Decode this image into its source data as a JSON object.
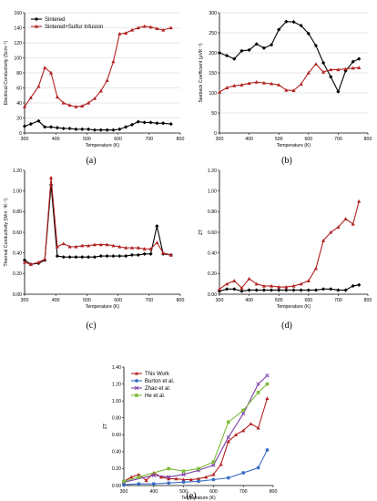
{
  "chart_data": [
    {
      "id": "a",
      "caption": "(a)",
      "type": "line",
      "xlabel": "Temperature (K)",
      "ylabel": "Electrical Conductivity (Scm⁻¹)",
      "xlim": [
        300,
        800
      ],
      "ylim": [
        0,
        160
      ],
      "xticks": [
        300,
        400,
        500,
        600,
        700,
        800
      ],
      "yticks": [
        0,
        20,
        40,
        60,
        80,
        100,
        120,
        140,
        160
      ],
      "grid": true,
      "legend": "top-left",
      "series": [
        {
          "name": "Sintered",
          "color": "#000000",
          "marker": "diamond",
          "x": [
            300,
            320,
            345,
            365,
            385,
            405,
            425,
            445,
            465,
            485,
            505,
            525,
            545,
            565,
            585,
            605,
            625,
            645,
            665,
            685,
            705,
            725,
            745,
            770
          ],
          "y": [
            9,
            12,
            16,
            8,
            8,
            7,
            6,
            6,
            5,
            5,
            5,
            4,
            4,
            4,
            4,
            5,
            8,
            11,
            15,
            14,
            14,
            13,
            13,
            12
          ]
        },
        {
          "name": "Sintered+Sulfur Infusion",
          "color": "#b22222",
          "marker": "triangle",
          "x": [
            300,
            320,
            345,
            365,
            385,
            405,
            425,
            445,
            465,
            485,
            505,
            525,
            545,
            565,
            585,
            605,
            625,
            645,
            665,
            685,
            705,
            725,
            745,
            770
          ],
          "y": [
            35,
            47,
            62,
            87,
            80,
            48,
            40,
            37,
            35,
            36,
            40,
            46,
            56,
            70,
            95,
            132,
            133,
            137,
            140,
            142,
            141,
            139,
            137,
            140
          ]
        }
      ]
    },
    {
      "id": "b",
      "caption": "(b)",
      "type": "line",
      "xlabel": "Temperature (K)",
      "ylabel": "Seebeck Coefficient (μVK⁻¹)",
      "xlim": [
        300,
        800
      ],
      "ylim": [
        0,
        300
      ],
      "xticks": [
        300,
        400,
        500,
        600,
        700,
        800
      ],
      "yticks": [
        0,
        50,
        100,
        150,
        200,
        250,
        300
      ],
      "grid": true,
      "series": [
        {
          "name": "",
          "color": "#000000",
          "marker": "diamond",
          "x": [
            300,
            325,
            350,
            375,
            400,
            425,
            450,
            475,
            500,
            525,
            550,
            575,
            600,
            625,
            650,
            675,
            700,
            725,
            750,
            770
          ],
          "y": [
            200,
            193,
            185,
            205,
            207,
            222,
            212,
            220,
            258,
            278,
            277,
            268,
            248,
            218,
            175,
            140,
            103,
            155,
            178,
            185
          ]
        },
        {
          "name": "",
          "color": "#b22222",
          "marker": "triangle",
          "x": [
            300,
            325,
            350,
            375,
            400,
            425,
            450,
            475,
            500,
            525,
            550,
            575,
            600,
            625,
            650,
            675,
            700,
            725,
            750,
            770
          ],
          "y": [
            102,
            113,
            118,
            120,
            124,
            127,
            125,
            123,
            120,
            107,
            106,
            122,
            150,
            172,
            152,
            158,
            158,
            160,
            162,
            163
          ]
        }
      ]
    },
    {
      "id": "c",
      "caption": "(c)",
      "type": "line",
      "xlabel": "Temperature (K)",
      "ylabel": "Thermal Conductivity (Wm⁻¹K⁻¹)",
      "xlim": [
        300,
        800
      ],
      "ylim": [
        0,
        1.2
      ],
      "xticks": [
        300,
        400,
        500,
        600,
        700,
        800
      ],
      "yticks": [
        0,
        0.2,
        0.4,
        0.6,
        0.8,
        1.0,
        1.2
      ],
      "grid": false,
      "series": [
        {
          "name": "",
          "color": "#000000",
          "marker": "diamond",
          "x": [
            300,
            320,
            345,
            365,
            385,
            405,
            425,
            445,
            465,
            485,
            505,
            525,
            545,
            565,
            585,
            605,
            625,
            645,
            665,
            685,
            705,
            725,
            745,
            770
          ],
          "y": [
            0.33,
            0.29,
            0.3,
            0.33,
            1.06,
            0.37,
            0.36,
            0.36,
            0.36,
            0.36,
            0.36,
            0.36,
            0.37,
            0.37,
            0.37,
            0.37,
            0.37,
            0.38,
            0.38,
            0.39,
            0.39,
            0.66,
            0.39,
            0.38
          ]
        },
        {
          "name": "",
          "color": "#b22222",
          "marker": "triangle",
          "x": [
            300,
            320,
            345,
            365,
            385,
            405,
            425,
            445,
            465,
            485,
            505,
            525,
            545,
            565,
            585,
            605,
            625,
            645,
            665,
            685,
            705,
            725,
            745,
            770
          ],
          "y": [
            0.31,
            0.29,
            0.31,
            0.34,
            1.13,
            0.46,
            0.49,
            0.46,
            0.46,
            0.47,
            0.47,
            0.48,
            0.48,
            0.48,
            0.47,
            0.46,
            0.45,
            0.45,
            0.45,
            0.44,
            0.44,
            0.5,
            0.4,
            0.38
          ]
        }
      ]
    },
    {
      "id": "d",
      "caption": "(d)",
      "type": "line",
      "xlabel": "Temperature (K)",
      "ylabel": "ZT",
      "xlim": [
        300,
        800
      ],
      "ylim": [
        0,
        1.2
      ],
      "xticks": [
        300,
        400,
        500,
        600,
        700,
        800
      ],
      "yticks": [
        0,
        0.2,
        0.4,
        0.6,
        0.8,
        1.0,
        1.2
      ],
      "grid": false,
      "series": [
        {
          "name": "",
          "color": "#000000",
          "marker": "diamond",
          "x": [
            300,
            325,
            350,
            375,
            400,
            425,
            450,
            475,
            500,
            525,
            550,
            575,
            600,
            625,
            650,
            675,
            700,
            725,
            750,
            770
          ],
          "y": [
            0.03,
            0.05,
            0.05,
            0.03,
            0.04,
            0.04,
            0.04,
            0.04,
            0.04,
            0.04,
            0.04,
            0.04,
            0.04,
            0.04,
            0.05,
            0.05,
            0.04,
            0.04,
            0.08,
            0.09
          ]
        },
        {
          "name": "",
          "color": "#b22222",
          "marker": "triangle",
          "x": [
            300,
            325,
            350,
            375,
            400,
            425,
            450,
            475,
            500,
            525,
            550,
            575,
            600,
            625,
            650,
            675,
            700,
            725,
            750,
            770
          ],
          "y": [
            0.05,
            0.1,
            0.13,
            0.06,
            0.15,
            0.1,
            0.08,
            0.08,
            0.07,
            0.07,
            0.08,
            0.1,
            0.13,
            0.25,
            0.52,
            0.6,
            0.65,
            0.73,
            0.68,
            0.9
          ]
        }
      ]
    },
    {
      "id": "e",
      "caption": "(e)",
      "type": "line",
      "xlabel": "Temperature (K)",
      "ylabel": "ZT",
      "xlim": [
        300,
        800
      ],
      "ylim": [
        0,
        1.4
      ],
      "xticks": [
        300,
        400,
        500,
        600,
        700,
        800
      ],
      "yticks": [
        0,
        0.2,
        0.4,
        0.6,
        0.8,
        1.0,
        1.2,
        1.4
      ],
      "grid": false,
      "legend": "top-left",
      "series": [
        {
          "name": "This Work",
          "color": "#b22222",
          "marker": "triangle",
          "x": [
            300,
            325,
            350,
            375,
            400,
            425,
            450,
            475,
            500,
            525,
            550,
            575,
            600,
            625,
            650,
            675,
            700,
            725,
            750,
            780
          ],
          "y": [
            0.05,
            0.1,
            0.13,
            0.06,
            0.15,
            0.1,
            0.08,
            0.08,
            0.07,
            0.07,
            0.08,
            0.1,
            0.13,
            0.25,
            0.52,
            0.6,
            0.65,
            0.73,
            0.68,
            1.03
          ]
        },
        {
          "name": "Burton et al.",
          "color": "#3a6fc4",
          "marker": "circle",
          "x": [
            300,
            350,
            400,
            450,
            500,
            550,
            600,
            650,
            700,
            750,
            780
          ],
          "y": [
            0.01,
            0.02,
            0.02,
            0.03,
            0.04,
            0.05,
            0.07,
            0.09,
            0.15,
            0.21,
            0.42
          ]
        },
        {
          "name": "Zhao et al.",
          "color": "#7b3fa8",
          "marker": "x",
          "x": [
            300,
            400,
            450,
            500,
            550,
            600,
            650,
            700,
            750,
            780
          ],
          "y": [
            0.04,
            0.12,
            0.1,
            0.13,
            0.18,
            0.24,
            0.57,
            0.85,
            1.2,
            1.3
          ]
        },
        {
          "name": "He et al.",
          "color": "#7cbc3a",
          "marker": "square",
          "x": [
            300,
            350,
            450,
            500,
            550,
            600,
            650,
            700,
            750,
            780
          ],
          "y": [
            0.05,
            0.1,
            0.2,
            0.17,
            0.2,
            0.28,
            0.75,
            0.89,
            1.1,
            1.2
          ]
        }
      ]
    }
  ]
}
